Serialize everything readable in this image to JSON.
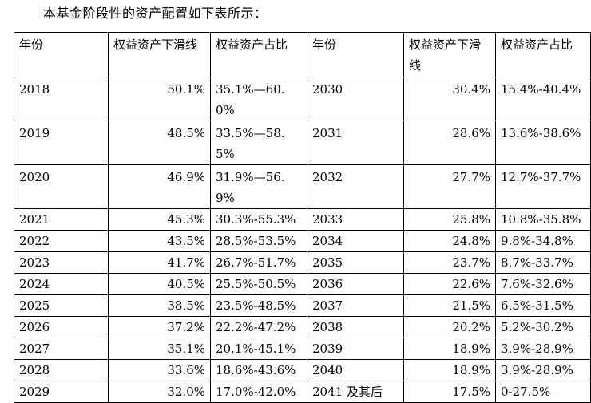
{
  "intro": "本基金阶段性的资产配置如下表所示：",
  "headers": [
    "年份",
    "权益资产下滑线",
    "权益资产占比",
    "年份",
    "权益资产下滑线",
    "权益资产占比"
  ],
  "rows": [
    [
      "2018",
      "50.1%",
      "35.1%—60.0%",
      "2030",
      "30.4%",
      "15.4%-40.4%"
    ],
    [
      "2019",
      "48.5%",
      "33.5%—58.5%",
      "2031",
      "28.6%",
      "13.6%-38.6%"
    ],
    [
      "2020",
      "46.9%",
      "31.9%—56.9%",
      "2032",
      "27.7%",
      "12.7%-37.7%"
    ],
    [
      "2021",
      "45.3%",
      "30.3%-55.3%",
      "2033",
      "25.8%",
      "10.8%-35.8%"
    ],
    [
      "2022",
      "43.5%",
      "28.5%-53.5%",
      "2034",
      "24.8%",
      "9.8%-34.8%"
    ],
    [
      "2023",
      "41.7%",
      "26.7%-51.7%",
      "2035",
      "23.7%",
      "8.7%-33.7%"
    ],
    [
      "2024",
      "40.5%",
      "25.5%-50.5%",
      "2036",
      "22.6%",
      "7.6%-32.6%"
    ],
    [
      "2025",
      "38.5%",
      "23.5%-48.5%",
      "2037",
      "21.5%",
      "6.5%-31.5%"
    ],
    [
      "2026",
      "37.2%",
      "22.2%-47.2%",
      "2038",
      "20.2%",
      "5.2%-30.2%"
    ],
    [
      "2027",
      "35.1%",
      "20.1%-45.1%",
      "2039",
      "18.9%",
      "3.9%-28.9%"
    ],
    [
      "2028",
      "33.6%",
      "18.6%-43.6%",
      "2040",
      "18.9%",
      "3.9%-28.9%"
    ],
    [
      "2029",
      "32.0%",
      "17.0%-42.0%",
      "2041 及其后",
      "17.5%",
      "0-27.5%"
    ]
  ]
}
